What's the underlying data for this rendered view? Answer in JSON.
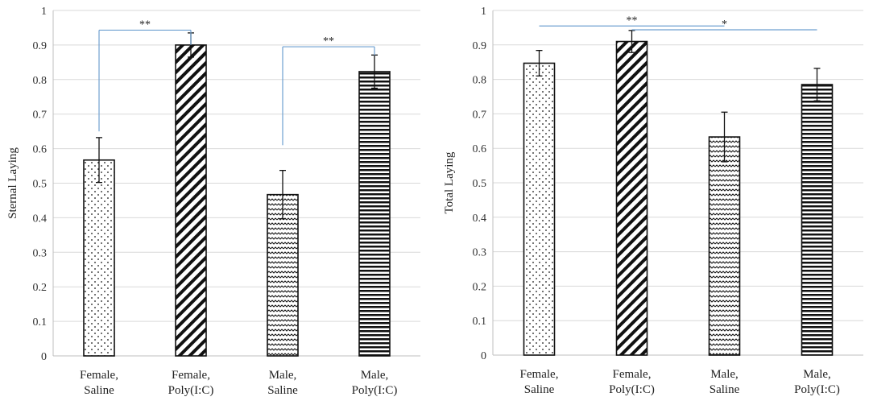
{
  "chart_data": [
    {
      "type": "bar",
      "title": "",
      "xlabel": "",
      "ylabel": "Sternal Laying",
      "ylim": [
        0,
        1
      ],
      "yticks": [
        "0",
        "0.1",
        "0.2",
        "0.3",
        "0.4",
        "0.5",
        "0.6",
        "0.7",
        "0.8",
        "0.9",
        "1"
      ],
      "grid": true,
      "categories": [
        [
          "Female,",
          "Saline"
        ],
        [
          "Female,",
          "Poly(I:C)"
        ],
        [
          "Male,",
          "Saline"
        ],
        [
          "Male,",
          "Poly(I:C)"
        ]
      ],
      "values": [
        0.567,
        0.9,
        0.467,
        0.823
      ],
      "errors": [
        0.065,
        0.035,
        0.07,
        0.048
      ],
      "patterns": [
        "dots",
        "diagonal",
        "wave",
        "horizontal"
      ],
      "significance": [
        {
          "from": 0,
          "to": 1,
          "label": "**",
          "from_y": 0.65,
          "bar_y": 0.943,
          "to_y": 0.9
        },
        {
          "from": 2,
          "to": 3,
          "label": "**",
          "from_y": 0.61,
          "bar_y": 0.895,
          "to_y": 0.87
        }
      ]
    },
    {
      "type": "bar",
      "title": "",
      "xlabel": "",
      "ylabel": "Total Laying",
      "ylim": [
        0,
        1
      ],
      "yticks": [
        "0",
        "0.1",
        "0.2",
        "0.3",
        "0.4",
        "0.5",
        "0.6",
        "0.7",
        "0.8",
        "0.9",
        "1"
      ],
      "grid": true,
      "categories": [
        [
          "Female,",
          "Saline"
        ],
        [
          "Female,",
          "Poly(I:C)"
        ],
        [
          "Male,",
          "Saline"
        ],
        [
          "Male,",
          "Poly(I:C)"
        ]
      ],
      "values": [
        0.847,
        0.91,
        0.633,
        0.785
      ],
      "errors": [
        0.037,
        0.032,
        0.072,
        0.047
      ],
      "patterns": [
        "dots",
        "diagonal",
        "wave",
        "horizontal"
      ],
      "significance": [
        {
          "from": 0,
          "to": 2,
          "label": "**",
          "bar_y": 0.955
        },
        {
          "from": 1,
          "to": 3,
          "label": "*",
          "bar_y": 0.944
        }
      ]
    }
  ],
  "colors": {
    "bar_stroke": "#111111",
    "pattern": "#111111",
    "grid": "#d9d9d9",
    "axis": "#bfbfbf",
    "significance": "#6fa0d0",
    "error_bar": "#111111"
  }
}
